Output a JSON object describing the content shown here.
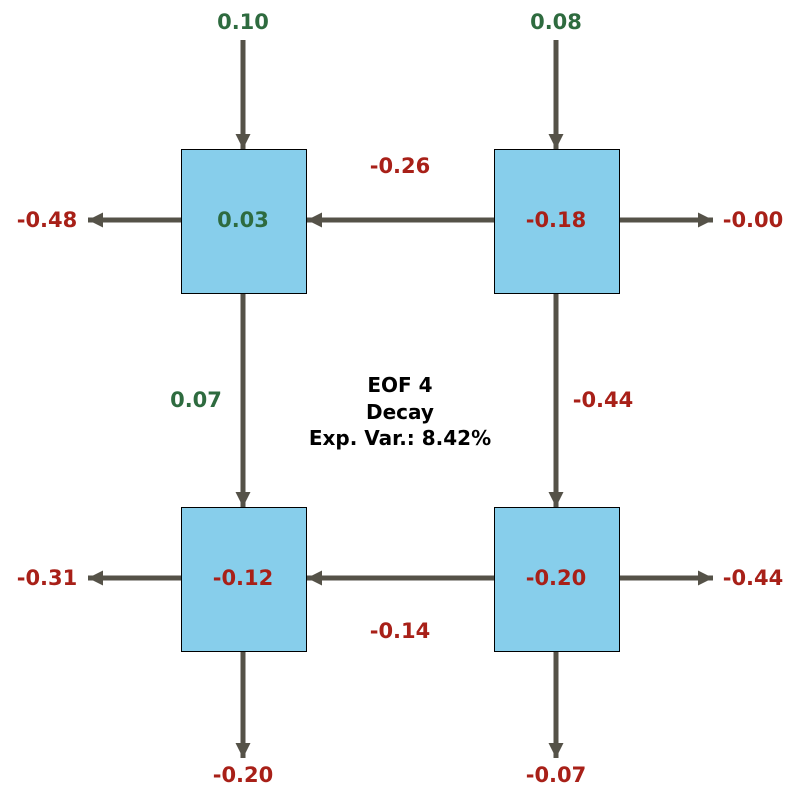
{
  "diagram": {
    "title_lines": [
      "EOF 4",
      "Decay",
      "Exp. Var.: 8.42%"
    ],
    "colors": {
      "box_fill": "#87CEEB",
      "box_stroke": "#000000",
      "arrow": "#555248",
      "positive": "#2e6b3f",
      "negative": "#a82018"
    },
    "boxes": {
      "top_left": {
        "value": "0.03"
      },
      "top_right": {
        "value": "-0.18"
      },
      "bottom_left": {
        "value": "-0.12"
      },
      "bottom_right": {
        "value": "-0.20"
      }
    },
    "flows": {
      "inflow_top_left": {
        "value": "0.10"
      },
      "inflow_top_right": {
        "value": "0.08"
      },
      "outflow_left_top": {
        "value": "-0.48"
      },
      "outflow_right_top": {
        "value": "-0.00"
      },
      "outflow_left_bottom": {
        "value": "-0.31"
      },
      "outflow_right_bottom": {
        "value": "-0.44"
      },
      "outflow_bottom_left": {
        "value": "-0.20"
      },
      "outflow_bottom_right": {
        "value": "-0.07"
      },
      "top_right_to_top_left": {
        "value": "-0.26"
      },
      "bottom_right_to_bottom_left": {
        "value": "-0.14"
      },
      "top_left_to_bottom_left": {
        "value": "0.07"
      },
      "top_right_to_bottom_right": {
        "value": "-0.44"
      }
    }
  }
}
